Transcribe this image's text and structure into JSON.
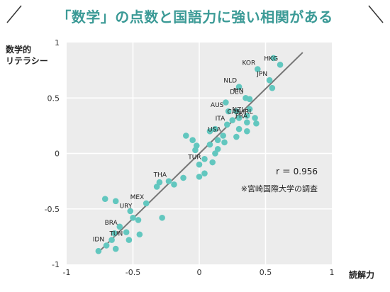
{
  "header": {
    "title": "「数学」の点数と国語力に強い相関がある"
  },
  "colors": {
    "accent": "#3b9a96",
    "point": "#62c7bf",
    "trend": "#777777",
    "plot_bg": "#ececec"
  },
  "chart_data": {
    "type": "scatter",
    "title": "「数学」の点数と国語力に強い相関がある",
    "ylabel_lines": [
      "数学的",
      "リテラシー"
    ],
    "xlabel": "読解力",
    "xlim": [
      -1,
      1
    ],
    "ylim": [
      -1,
      1
    ],
    "xticks": [
      -1,
      -0.5,
      0,
      0.5,
      1
    ],
    "yticks": [
      1,
      0.5,
      0,
      -0.5,
      -1
    ],
    "grid": true,
    "trend_line": {
      "from": [
        -0.76,
        -0.89
      ],
      "to": [
        0.78,
        0.91
      ]
    },
    "stat_text": "r ＝ 0.956",
    "source_text": "※宮崎国際大学の調査",
    "labeled_points": [
      {
        "label": "HKG",
        "x": 0.61,
        "y": 0.8
      },
      {
        "label": "KOR",
        "x": 0.44,
        "y": 0.76
      },
      {
        "label": "JPN",
        "x": 0.53,
        "y": 0.66
      },
      {
        "label": "NLD",
        "x": 0.3,
        "y": 0.6
      },
      {
        "label": "DEU",
        "x": 0.35,
        "y": 0.5
      },
      {
        "label": "FIN",
        "x": 0.35,
        "y": 0.51
      },
      {
        "label": "AUS",
        "x": 0.2,
        "y": 0.38
      },
      {
        "label": "NZL",
        "x": 0.36,
        "y": 0.34
      },
      {
        "label": "CAN",
        "x": 0.33,
        "y": 0.32
      },
      {
        "label": "IRL",
        "x": 0.42,
        "y": 0.32
      },
      {
        "label": "ITA",
        "x": 0.21,
        "y": 0.26
      },
      {
        "label": "FRA",
        "x": 0.38,
        "y": 0.28
      },
      {
        "label": "USA",
        "x": 0.18,
        "y": 0.16
      },
      {
        "label": "TUR",
        "x": 0.03,
        "y": -0.09
      },
      {
        "label": "THA",
        "x": -0.23,
        "y": -0.25
      },
      {
        "label": "MEX",
        "x": -0.4,
        "y": -0.45
      },
      {
        "label": "URY",
        "x": -0.49,
        "y": -0.53
      },
      {
        "label": "BRA",
        "x": -0.6,
        "y": -0.68
      },
      {
        "label": "IDN",
        "x": -0.7,
        "y": -0.83
      },
      {
        "label": "TUN",
        "x": -0.56,
        "y": -0.78
      }
    ],
    "points": [
      {
        "x": 0.61,
        "y": 0.8
      },
      {
        "x": 0.56,
        "y": 0.86
      },
      {
        "x": 0.44,
        "y": 0.76
      },
      {
        "x": 0.53,
        "y": 0.66
      },
      {
        "x": 0.55,
        "y": 0.59
      },
      {
        "x": 0.3,
        "y": 0.6
      },
      {
        "x": 0.35,
        "y": 0.5
      },
      {
        "x": 0.38,
        "y": 0.49
      },
      {
        "x": 0.2,
        "y": 0.46
      },
      {
        "x": 0.22,
        "y": 0.38
      },
      {
        "x": 0.28,
        "y": 0.38
      },
      {
        "x": 0.38,
        "y": 0.4
      },
      {
        "x": 0.36,
        "y": 0.34
      },
      {
        "x": 0.42,
        "y": 0.32
      },
      {
        "x": 0.3,
        "y": 0.32
      },
      {
        "x": 0.25,
        "y": 0.3
      },
      {
        "x": 0.21,
        "y": 0.26
      },
      {
        "x": 0.36,
        "y": 0.28
      },
      {
        "x": 0.43,
        "y": 0.27
      },
      {
        "x": 0.3,
        "y": 0.22
      },
      {
        "x": 0.36,
        "y": 0.2
      },
      {
        "x": 0.12,
        "y": 0.22
      },
      {
        "x": 0.08,
        "y": 0.2
      },
      {
        "x": 0.18,
        "y": 0.16
      },
      {
        "x": 0.28,
        "y": 0.15
      },
      {
        "x": 0.14,
        "y": 0.12
      },
      {
        "x": 0.19,
        "y": 0.1
      },
      {
        "x": -0.05,
        "y": 0.12
      },
      {
        "x": -0.1,
        "y": 0.16
      },
      {
        "x": -0.02,
        "y": 0.07
      },
      {
        "x": 0.08,
        "y": 0.08
      },
      {
        "x": 0.14,
        "y": 0.04
      },
      {
        "x": -0.03,
        "y": 0.03
      },
      {
        "x": 0.12,
        "y": 0.0
      },
      {
        "x": 0.04,
        "y": -0.05
      },
      {
        "x": 0.1,
        "y": -0.08
      },
      {
        "x": 0.0,
        "y": -0.1
      },
      {
        "x": 0.04,
        "y": -0.18
      },
      {
        "x": 0.0,
        "y": -0.21
      },
      {
        "x": -0.12,
        "y": -0.22
      },
      {
        "x": -0.19,
        "y": -0.28
      },
      {
        "x": -0.23,
        "y": -0.25
      },
      {
        "x": -0.3,
        "y": -0.26
      },
      {
        "x": -0.32,
        "y": -0.3
      },
      {
        "x": -0.4,
        "y": -0.45
      },
      {
        "x": -0.52,
        "y": -0.52
      },
      {
        "x": -0.5,
        "y": -0.58
      },
      {
        "x": -0.71,
        "y": -0.41
      },
      {
        "x": -0.63,
        "y": -0.43
      },
      {
        "x": -0.28,
        "y": -0.58
      },
      {
        "x": -0.46,
        "y": -0.6
      },
      {
        "x": -0.55,
        "y": -0.71
      },
      {
        "x": -0.6,
        "y": -0.66
      },
      {
        "x": -0.66,
        "y": -0.78
      },
      {
        "x": -0.64,
        "y": -0.72
      },
      {
        "x": -0.53,
        "y": -0.78
      },
      {
        "x": -0.63,
        "y": -0.86
      },
      {
        "x": -0.76,
        "y": -0.88
      },
      {
        "x": -0.7,
        "y": -0.83
      },
      {
        "x": -0.45,
        "y": -0.73
      }
    ]
  }
}
